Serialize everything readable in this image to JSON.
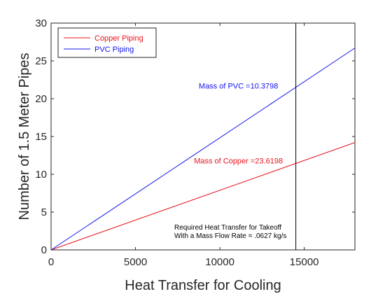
{
  "chart_data": {
    "type": "line",
    "title": "",
    "xlabel": "Heat Transfer for Cooling",
    "ylabel": "Number of 1.5 Meter Pipes",
    "xlim": [
      0,
      18000
    ],
    "ylim": [
      0,
      30
    ],
    "xticks": [
      0,
      5000,
      10000,
      15000
    ],
    "yticks": [
      0,
      5,
      10,
      15,
      20,
      25,
      30
    ],
    "grid": false,
    "legend_position": "top-left",
    "series": [
      {
        "name": "Copper Piping",
        "color": "#e8141c",
        "x": [
          0,
          18000
        ],
        "y": [
          0,
          14.2
        ]
      },
      {
        "name": "PVC Piping",
        "color": "#1414ee",
        "x": [
          0,
          18000
        ],
        "y": [
          0,
          26.7
        ]
      }
    ],
    "vertical_line": {
      "x": 14500,
      "color": "#000000"
    },
    "annotations": [
      {
        "text": "Mass of PVC =10.3798",
        "x": 11100,
        "y": 21.7,
        "color": "#1414ee"
      },
      {
        "text": "Mass of Copper =23.6198",
        "x": 11100,
        "y": 11.8,
        "color": "#e8141c"
      }
    ],
    "note": {
      "lines": [
        "Required Heat Transfer for Takeoff",
        "With a Mass Flow Rate = .0627 kg/s"
      ],
      "x": 7300,
      "y": 2.7
    }
  }
}
